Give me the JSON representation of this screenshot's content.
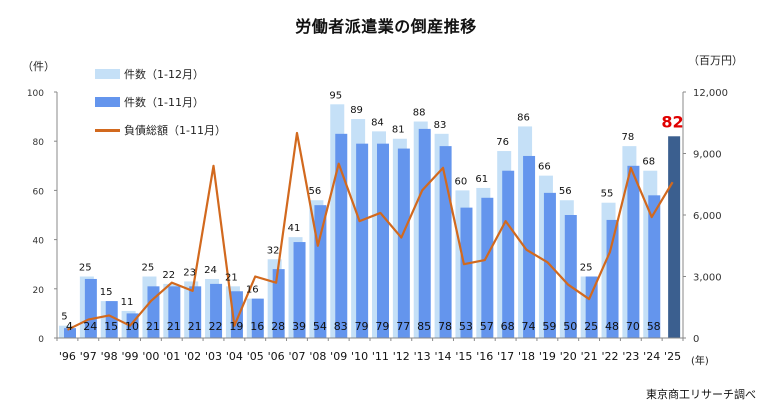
{
  "title": "労働者派遣業の倒産推移",
  "left_unit": "（件）",
  "right_unit": "（百万円）",
  "x_unit": "(年)",
  "source": "東京商工リサーチ調べ",
  "legend": [
    {
      "label": "件数（1-12月）",
      "color": "#c5e0f7",
      "kind": "bar"
    },
    {
      "label": "件数（1-11月）",
      "color": "#6495ed",
      "kind": "bar"
    },
    {
      "label": "負債総額（1-11月）",
      "color": "#d2691e",
      "kind": "line"
    }
  ],
  "highlight": {
    "label": "82",
    "color": "#e00000",
    "bar_color": "#3b5f8f"
  },
  "left_ticks": [
    "0",
    "20",
    "40",
    "60",
    "80",
    "100"
  ],
  "right_ticks": [
    "0",
    "3,000",
    "6,000",
    "9,000",
    "12,000"
  ],
  "chart_data": {
    "type": "bar",
    "title": "労働者派遣業の倒産推移",
    "xlabel": "(年)",
    "ylabel": "（件）",
    "y2label": "（百万円）",
    "ylim": [
      0,
      100
    ],
    "y2lim": [
      0,
      12000
    ],
    "grid": false,
    "legend_position": "top-left",
    "categories": [
      "'96",
      "'97",
      "'98",
      "'99",
      "'00",
      "'01",
      "'02",
      "'03",
      "'04",
      "'05",
      "'06",
      "'07",
      "'08",
      "'09",
      "'10",
      "'11",
      "'12",
      "'13",
      "'14",
      "'15",
      "'16",
      "'17",
      "'18",
      "'19",
      "'20",
      "'21",
      "'22",
      "'23",
      "'24",
      "'25"
    ],
    "series": [
      {
        "name": "件数（1-12月）",
        "type": "bar",
        "axis": "left",
        "values": [
          5,
          25,
          15,
          11,
          25,
          22,
          23,
          24,
          21,
          16,
          32,
          41,
          56,
          95,
          89,
          84,
          81,
          88,
          83,
          60,
          61,
          76,
          86,
          66,
          56,
          25,
          55,
          78,
          68,
          null
        ]
      },
      {
        "name": "件数（1-11月）",
        "type": "bar",
        "axis": "left",
        "values": [
          4,
          24,
          15,
          10,
          21,
          21,
          21,
          22,
          19,
          16,
          28,
          39,
          54,
          83,
          79,
          79,
          77,
          85,
          78,
          53,
          57,
          68,
          74,
          59,
          50,
          25,
          48,
          70,
          58,
          82
        ]
      },
      {
        "name": "負債総額（1-11月）",
        "type": "line",
        "axis": "right",
        "values": [
          400,
          900,
          1100,
          600,
          1800,
          2700,
          2300,
          8400,
          600,
          3000,
          2700,
          10000,
          4500,
          8500,
          5700,
          6100,
          4900,
          7200,
          8300,
          3600,
          3800,
          5700,
          4300,
          3700,
          2600,
          1900,
          4200,
          8300,
          5900,
          7600
        ]
      }
    ],
    "annotations": [
      {
        "x": "'25",
        "text": "82",
        "color": "#e00000"
      }
    ]
  }
}
